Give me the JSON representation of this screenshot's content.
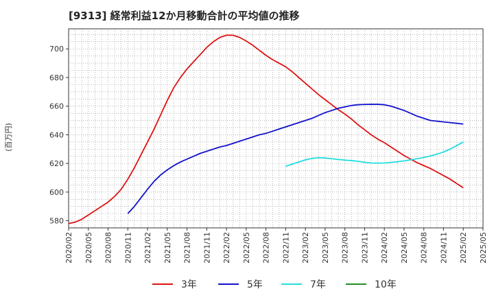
{
  "chart_data": {
    "type": "line",
    "title": "[9313]  経常利益12か月移動合計の平均値の推移",
    "ylabel": "(百万円)",
    "ylim": [
      575,
      714
    ],
    "yticks": [
      580,
      600,
      620,
      640,
      660,
      680,
      700
    ],
    "xticks": [
      "2020/02",
      "2020/05",
      "2020/08",
      "2020/11",
      "2021/02",
      "2021/05",
      "2021/08",
      "2021/11",
      "2022/02",
      "2022/05",
      "2022/08",
      "2022/11",
      "2023/02",
      "2023/05",
      "2023/08",
      "2023/11",
      "2024/02",
      "2024/05",
      "2024/08",
      "2024/11",
      "2025/02",
      "2025/05"
    ],
    "grid": true,
    "legend_position": "bottom",
    "series": [
      {
        "name": "3年",
        "color": "#dd1111",
        "points": [
          [
            "2020/02",
            578
          ],
          [
            "2020/03",
            579
          ],
          [
            "2020/04",
            581
          ],
          [
            "2020/05",
            584
          ],
          [
            "2020/06",
            587
          ],
          [
            "2020/07",
            590
          ],
          [
            "2020/08",
            593
          ],
          [
            "2020/09",
            597
          ],
          [
            "2020/10",
            602
          ],
          [
            "2020/11",
            609
          ],
          [
            "2020/12",
            617
          ],
          [
            "2021/01",
            626
          ],
          [
            "2021/02",
            635
          ],
          [
            "2021/03",
            644
          ],
          [
            "2021/04",
            654
          ],
          [
            "2021/05",
            664
          ],
          [
            "2021/06",
            673
          ],
          [
            "2021/07",
            680
          ],
          [
            "2021/08",
            686
          ],
          [
            "2021/09",
            691
          ],
          [
            "2021/10",
            696
          ],
          [
            "2021/11",
            701
          ],
          [
            "2021/12",
            705
          ],
          [
            "2022/01",
            708
          ],
          [
            "2022/02",
            709.5
          ],
          [
            "2022/03",
            709.5
          ],
          [
            "2022/04",
            708
          ],
          [
            "2022/05",
            705.5
          ],
          [
            "2022/06",
            702.5
          ],
          [
            "2022/07",
            699
          ],
          [
            "2022/08",
            695.5
          ],
          [
            "2022/09",
            692.5
          ],
          [
            "2022/10",
            690
          ],
          [
            "2022/11",
            687.5
          ],
          [
            "2022/12",
            684
          ],
          [
            "2023/01",
            680
          ],
          [
            "2023/02",
            676
          ],
          [
            "2023/03",
            672
          ],
          [
            "2023/04",
            668
          ],
          [
            "2023/05",
            664.5
          ],
          [
            "2023/06",
            661
          ],
          [
            "2023/07",
            657.5
          ],
          [
            "2023/08",
            654.5
          ],
          [
            "2023/09",
            651
          ],
          [
            "2023/10",
            647
          ],
          [
            "2023/11",
            643.5
          ],
          [
            "2023/12",
            640
          ],
          [
            "2024/01",
            637
          ],
          [
            "2024/02",
            634.5
          ],
          [
            "2024/03",
            631.5
          ],
          [
            "2024/04",
            628.5
          ],
          [
            "2024/05",
            625.5
          ],
          [
            "2024/06",
            623
          ],
          [
            "2024/07",
            620.5
          ],
          [
            "2024/08",
            618.5
          ],
          [
            "2024/09",
            616.5
          ],
          [
            "2024/10",
            614
          ],
          [
            "2024/11",
            611.5
          ],
          [
            "2024/12",
            609
          ],
          [
            "2025/01",
            606
          ],
          [
            "2025/02",
            603
          ]
        ]
      },
      {
        "name": "5年",
        "color": "#1111cc",
        "points": [
          [
            "2020/11",
            585
          ],
          [
            "2020/12",
            590
          ],
          [
            "2021/01",
            596
          ],
          [
            "2021/02",
            602
          ],
          [
            "2021/03",
            607.5
          ],
          [
            "2021/04",
            612
          ],
          [
            "2021/05",
            615.5
          ],
          [
            "2021/06",
            618.5
          ],
          [
            "2021/07",
            621
          ],
          [
            "2021/08",
            623
          ],
          [
            "2021/09",
            625
          ],
          [
            "2021/10",
            627
          ],
          [
            "2021/11",
            628.5
          ],
          [
            "2021/12",
            630
          ],
          [
            "2022/01",
            631.5
          ],
          [
            "2022/02",
            632.5
          ],
          [
            "2022/03",
            634
          ],
          [
            "2022/04",
            635.5
          ],
          [
            "2022/05",
            637
          ],
          [
            "2022/06",
            638.5
          ],
          [
            "2022/07",
            640
          ],
          [
            "2022/08",
            641
          ],
          [
            "2022/09",
            642.5
          ],
          [
            "2022/10",
            644
          ],
          [
            "2022/11",
            645.5
          ],
          [
            "2022/12",
            647
          ],
          [
            "2023/01",
            648.5
          ],
          [
            "2023/02",
            650
          ],
          [
            "2023/03",
            651.5
          ],
          [
            "2023/04",
            653.5
          ],
          [
            "2023/05",
            655.5
          ],
          [
            "2023/06",
            657
          ],
          [
            "2023/07",
            658.5
          ],
          [
            "2023/08",
            659.5
          ],
          [
            "2023/09",
            660.5
          ],
          [
            "2023/10",
            661
          ],
          [
            "2023/11",
            661.2
          ],
          [
            "2023/12",
            661.3
          ],
          [
            "2024/01",
            661.3
          ],
          [
            "2024/02",
            661
          ],
          [
            "2024/03",
            660
          ],
          [
            "2024/04",
            658.5
          ],
          [
            "2024/05",
            657
          ],
          [
            "2024/06",
            655
          ],
          [
            "2024/07",
            653
          ],
          [
            "2024/08",
            651.5
          ],
          [
            "2024/09",
            650
          ],
          [
            "2024/10",
            649.5
          ],
          [
            "2024/11",
            649
          ],
          [
            "2024/12",
            648.5
          ],
          [
            "2025/01",
            648
          ],
          [
            "2025/02",
            647.5
          ]
        ]
      },
      {
        "name": "7年",
        "color": "#22dddd",
        "points": [
          [
            "2022/11",
            618
          ],
          [
            "2022/12",
            619.5
          ],
          [
            "2023/01",
            621
          ],
          [
            "2023/02",
            622.5
          ],
          [
            "2023/03",
            623.5
          ],
          [
            "2023/04",
            624
          ],
          [
            "2023/05",
            623.8
          ],
          [
            "2023/06",
            623.3
          ],
          [
            "2023/07",
            622.8
          ],
          [
            "2023/08",
            622.3
          ],
          [
            "2023/09",
            622
          ],
          [
            "2023/10",
            621.5
          ],
          [
            "2023/11",
            620.8
          ],
          [
            "2023/12",
            620.3
          ],
          [
            "2024/01",
            620.2
          ],
          [
            "2024/02",
            620.3
          ],
          [
            "2024/03",
            620.7
          ],
          [
            "2024/04",
            621.2
          ],
          [
            "2024/05",
            621.8
          ],
          [
            "2024/06",
            622.5
          ],
          [
            "2024/07",
            623.3
          ],
          [
            "2024/08",
            624.2
          ],
          [
            "2024/09",
            625.2
          ],
          [
            "2024/10",
            626.5
          ],
          [
            "2024/11",
            628
          ],
          [
            "2024/12",
            630
          ],
          [
            "2025/01",
            632.5
          ],
          [
            "2025/02",
            635
          ]
        ]
      },
      {
        "name": "10年",
        "color": "#228b22",
        "points": []
      }
    ]
  }
}
